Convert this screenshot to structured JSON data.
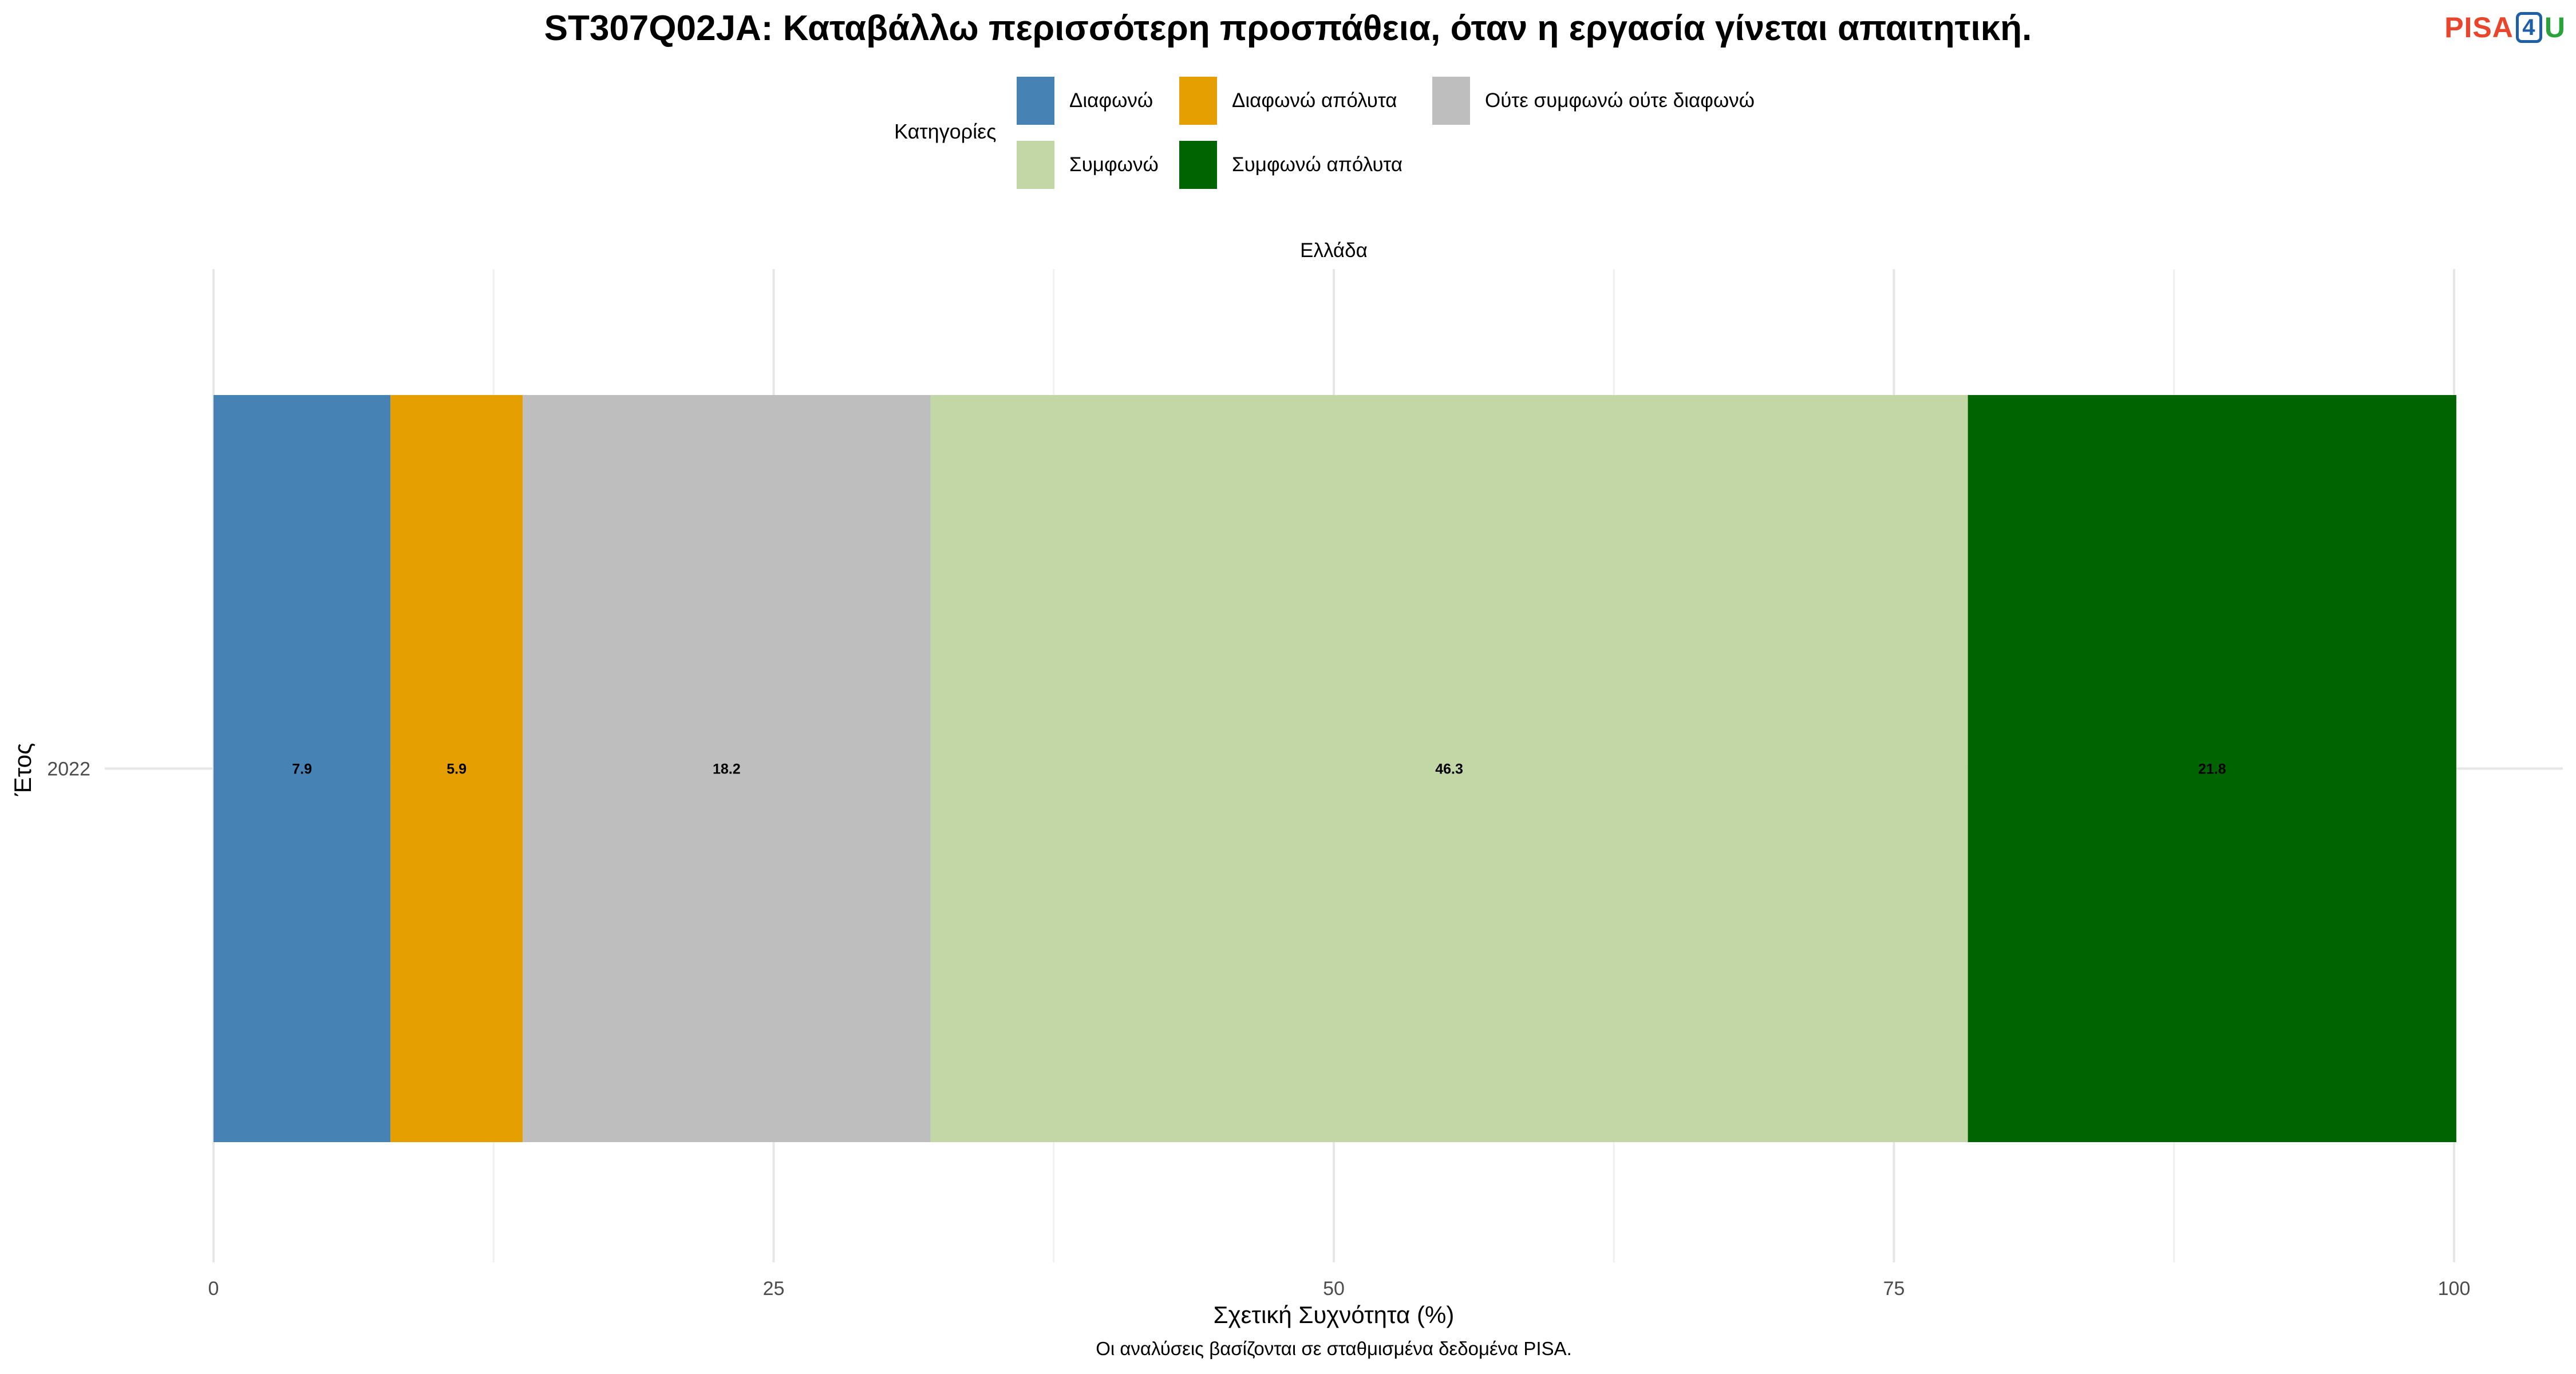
{
  "title": "ST307Q02JA: Καταβάλλω περισσότερη προσπάθεια, όταν η εργασία γίνεται απαιτητική.",
  "logo": {
    "pisa": "PISA",
    "four": "4",
    "u": "U"
  },
  "legend": {
    "title": "Κατηγορίες",
    "items": [
      {
        "label": "Διαφωνώ",
        "color": "#4682B4"
      },
      {
        "label": "Διαφωνώ απόλυτα",
        "color": "#E69F00"
      },
      {
        "label": "Ούτε συμφωνώ ούτε διαφωνώ",
        "color": "#BEBEBE"
      },
      {
        "label": "Συμφωνώ",
        "color": "#C3D7A6"
      },
      {
        "label": "Συμφωνώ απόλυτα",
        "color": "#006400"
      }
    ]
  },
  "facet_label": "Ελλάδα",
  "caption": "Οι αναλύσεις βασίζονται σε σταθμισμένα δεδομένα PISA.",
  "chart_data": {
    "type": "bar",
    "orientation": "horizontal",
    "stacked": true,
    "title": "ST307Q02JA: Καταβάλλω περισσότερη προσπάθεια, όταν η εργασία γίνεται απαιτητική.",
    "xlabel": "Σχετική Συχνότητα (%)",
    "ylabel": "Έτος",
    "xlim": [
      0,
      100
    ],
    "xticks": [
      0,
      25,
      50,
      75,
      100
    ],
    "categories": [
      "2022"
    ],
    "grid": true,
    "legend_position": "top",
    "series": [
      {
        "name": "Διαφωνώ",
        "values": [
          7.9
        ],
        "labels": [
          "7.9"
        ],
        "color": "#4682B4"
      },
      {
        "name": "Διαφωνώ απόλυτα",
        "values": [
          5.9
        ],
        "labels": [
          "5.9"
        ],
        "color": "#E69F00"
      },
      {
        "name": "Ούτε συμφωνώ ούτε διαφωνώ",
        "values": [
          18.2
        ],
        "labels": [
          "18.2"
        ],
        "color": "#BEBEBE"
      },
      {
        "name": "Συμφωνώ",
        "values": [
          46.3
        ],
        "labels": [
          "46.3"
        ],
        "color": "#C3D7A6"
      },
      {
        "name": "Συμφωνώ απόλυτα",
        "values": [
          21.8
        ],
        "labels": [
          "21.8"
        ],
        "color": "#006400"
      }
    ]
  }
}
